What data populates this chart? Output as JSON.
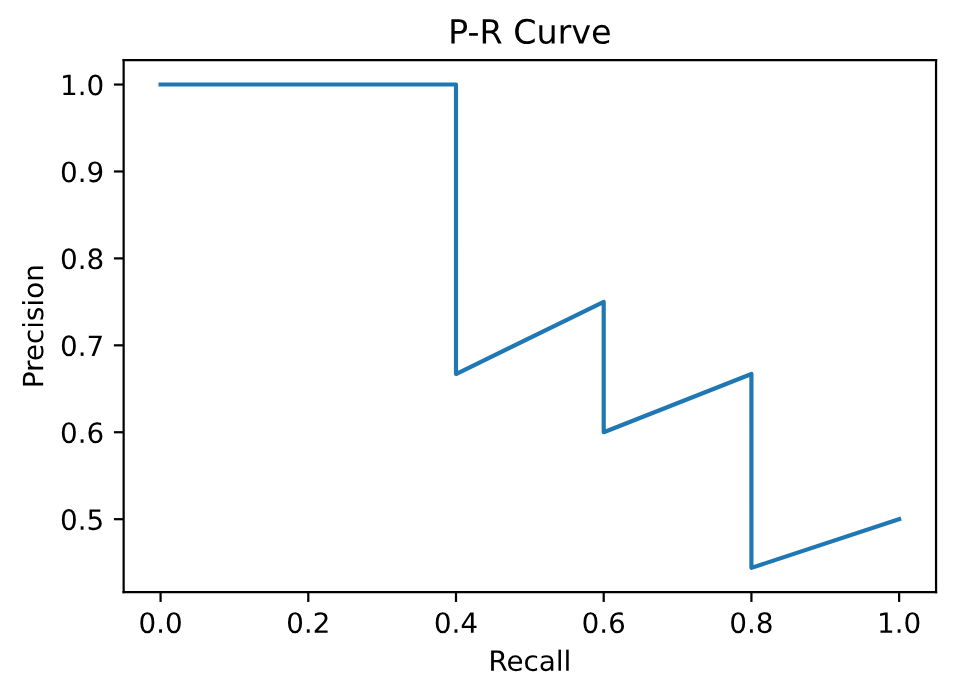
{
  "chart_data": {
    "type": "line",
    "title": "P-R Curve",
    "xlabel": "Recall",
    "ylabel": "Precision",
    "series": [
      {
        "color": "#1f77b4",
        "x": [
          0.0,
          0.4,
          0.4,
          0.6,
          0.6,
          0.8,
          0.8,
          1.0
        ],
        "values": [
          1.0,
          1.0,
          0.667,
          0.75,
          0.6,
          0.667,
          0.444,
          0.5
        ]
      }
    ],
    "xlim": [
      -0.05,
      1.05
    ],
    "ylim": [
      0.416,
      1.028
    ],
    "xticks": [
      {
        "value": 0.0,
        "label": "0.0"
      },
      0.2,
      0.4,
      0.6,
      0.8,
      {
        "value": 1.0,
        "label": "1.0"
      }
    ],
    "yticks": [
      0.5,
      0.6,
      0.7,
      0.8,
      0.9,
      {
        "value": 1.0,
        "label": "1.0"
      }
    ],
    "grid": false,
    "legend": false,
    "marker": "none",
    "line_style": "solid"
  }
}
